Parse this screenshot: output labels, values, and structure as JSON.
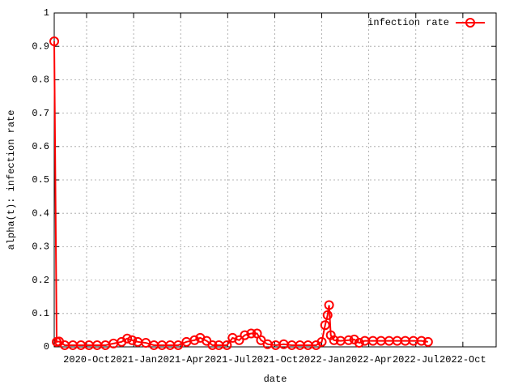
{
  "chart_data": {
    "type": "line",
    "xlabel": "date",
    "ylabel": "alpha(t): infection rate",
    "x": [
      2020.578,
      2020.591,
      2020.604,
      2020.634,
      2020.677,
      2020.72,
      2020.763,
      2020.806,
      2020.85,
      2020.893,
      2020.936,
      2020.966,
      2020.992,
      2021.022,
      2021.065,
      2021.108,
      2021.151,
      2021.194,
      2021.237,
      2021.281,
      2021.324,
      2021.354,
      2021.388,
      2021.419,
      2021.453,
      2021.496,
      2021.526,
      2021.561,
      2021.591,
      2021.625,
      2021.656,
      2021.677,
      2021.712,
      2021.755,
      2021.798,
      2021.841,
      2021.884,
      2021.927,
      2021.97,
      2022.0,
      2022.018,
      2022.031,
      2022.039,
      2022.048,
      2022.065,
      2022.1,
      2022.143,
      2022.173,
      2022.199,
      2022.229,
      2022.272,
      2022.315,
      2022.358,
      2022.401,
      2022.444,
      2022.487,
      2022.53,
      2022.565
    ],
    "series": [
      {
        "name": "infection rate",
        "color": "#ff0000",
        "values": [
          0.915,
          0.015,
          0.016,
          0.005,
          0.005,
          0.005,
          0.005,
          0.005,
          0.005,
          0.01,
          0.015,
          0.025,
          0.02,
          0.015,
          0.012,
          0.005,
          0.005,
          0.005,
          0.005,
          0.015,
          0.02,
          0.027,
          0.018,
          0.005,
          0.005,
          0.005,
          0.027,
          0.02,
          0.035,
          0.04,
          0.04,
          0.02,
          0.008,
          0.005,
          0.008,
          0.005,
          0.005,
          0.005,
          0.005,
          0.015,
          0.065,
          0.095,
          0.125,
          0.035,
          0.02,
          0.018,
          0.02,
          0.022,
          0.012,
          0.018,
          0.018,
          0.018,
          0.018,
          0.018,
          0.018,
          0.018,
          0.018,
          0.015
        ]
      }
    ],
    "xlim": [
      2020.578,
      2022.927
    ],
    "xticks": [
      {
        "value": 2020.75,
        "label": "2020-Oct"
      },
      {
        "value": 2021,
        "label": "2021-Jan"
      },
      {
        "value": 2021.25,
        "label": "2021-Apr"
      },
      {
        "value": 2021.5,
        "label": "2021-Jul"
      },
      {
        "value": 2021.75,
        "label": "2021-Oct"
      },
      {
        "value": 2022,
        "label": "2022-Jan"
      },
      {
        "value": 2022.25,
        "label": "2022-Apr"
      },
      {
        "value": 2022.5,
        "label": "2022-Jul"
      },
      {
        "value": 2022.75,
        "label": "2022-Oct"
      }
    ],
    "ylim": [
      0,
      1
    ],
    "yticks": [
      0,
      0.1,
      0.2,
      0.3,
      0.4,
      0.5,
      0.6,
      0.7,
      0.8,
      0.9,
      1
    ],
    "grid": true,
    "legend": "top-right"
  }
}
